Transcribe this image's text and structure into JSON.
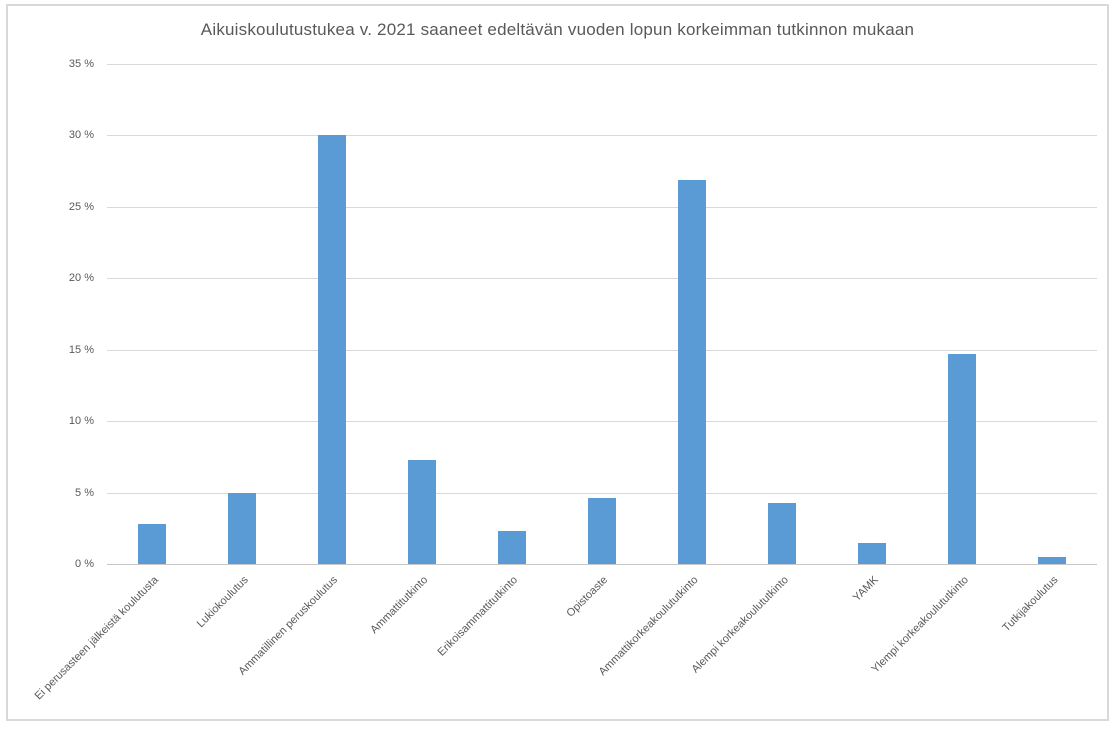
{
  "chart_data": {
    "type": "bar",
    "title": "Aikuiskoulutustukea v. 2021 saaneet edeltävän vuoden lopun korkeimman tutkinnon mukaan",
    "categories": [
      "Ei perusasteen jälkeistä koulutusta",
      "Lukiokoulutus",
      "Ammatillinen peruskoulutus",
      "Ammattitutkinto",
      "Erikoisammattitutkinto",
      "Opistoaste",
      "Ammattikorkeakoulututkinto",
      "Alempi korkeakoulututkinto",
      "YAMK",
      "Ylempi korkeakoulututkinto",
      "Tutkijakoulutus"
    ],
    "values": [
      2.8,
      5.0,
      30.0,
      7.3,
      2.3,
      4.6,
      26.9,
      4.3,
      1.5,
      14.7,
      0.5
    ],
    "unit": "%",
    "xlabel": "",
    "ylabel": "",
    "ylim": [
      0,
      35
    ],
    "ytick_step": 5,
    "ytick_labels": [
      "0 %",
      "5 %",
      "10 %",
      "15 %",
      "20 %",
      "25 %",
      "30 %",
      "35 %"
    ],
    "grid": true,
    "legend": "none",
    "bar_color": "#5B9BD5",
    "gridline_color": "#D9D9D9",
    "axis_line_color": "#C6C6C6",
    "text_color": "#595959",
    "frame_border_color": "#D9D9D9",
    "background_color": "#FFFFFF"
  }
}
